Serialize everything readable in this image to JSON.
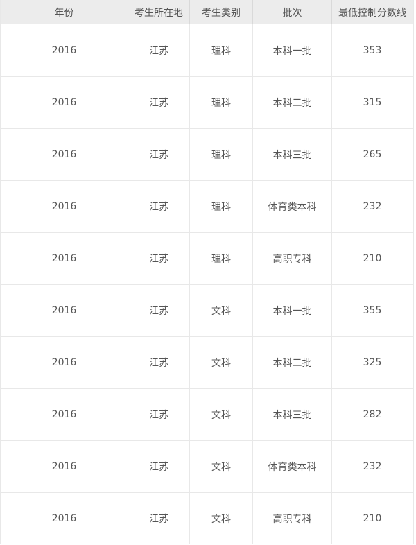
{
  "chart_data": {
    "type": "table",
    "columns": [
      "年份",
      "考生所在地",
      "考生类别",
      "批次",
      "最低控制分数线"
    ],
    "column_keys": [
      "year",
      "location",
      "category",
      "batch",
      "min-score"
    ],
    "rows": [
      [
        "2016",
        "江苏",
        "理科",
        "本科一批",
        "353"
      ],
      [
        "2016",
        "江苏",
        "理科",
        "本科二批",
        "315"
      ],
      [
        "2016",
        "江苏",
        "理科",
        "本科三批",
        "265"
      ],
      [
        "2016",
        "江苏",
        "理科",
        "体育类本科",
        "232"
      ],
      [
        "2016",
        "江苏",
        "理科",
        "高职专科",
        "210"
      ],
      [
        "2016",
        "江苏",
        "文科",
        "本科一批",
        "355"
      ],
      [
        "2016",
        "江苏",
        "文科",
        "本科二批",
        "325"
      ],
      [
        "2016",
        "江苏",
        "文科",
        "本科三批",
        "282"
      ],
      [
        "2016",
        "江苏",
        "文科",
        "体育类本科",
        "232"
      ],
      [
        "2016",
        "江苏",
        "文科",
        "高职专科",
        "210"
      ]
    ]
  },
  "colors": {
    "header_bg": "#ececec",
    "row_bg": "#ffffff",
    "row_border": "#e8e8e8",
    "header_divider": "#d9d9d9",
    "text": "#555555"
  }
}
